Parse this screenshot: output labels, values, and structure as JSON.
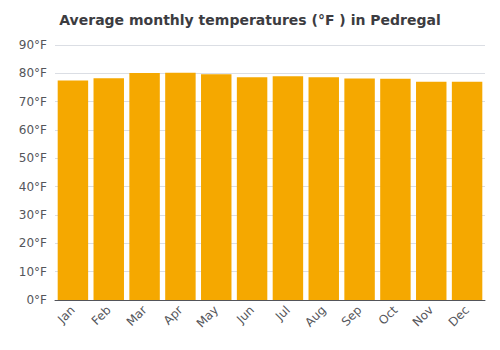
{
  "chart_data": {
    "type": "bar",
    "title": "Average monthly temperatures (°F ) in Pedregal",
    "categories": [
      "Jan",
      "Feb",
      "Mar",
      "Apr",
      "May",
      "Jun",
      "Jul",
      "Aug",
      "Sep",
      "Oct",
      "Nov",
      "Dec"
    ],
    "values": [
      77.5,
      78.3,
      80.1,
      80.2,
      79.7,
      78.6,
      79.0,
      78.6,
      78.2,
      78.1,
      77.0,
      77.0
    ],
    "color": "#F5A800",
    "ylim": [
      0,
      90
    ],
    "yticks": [
      {
        "value": 0,
        "label": "0°F"
      },
      {
        "value": 10,
        "label": "10°F"
      },
      {
        "value": 20,
        "label": "20°F"
      },
      {
        "value": 30,
        "label": "30°F"
      },
      {
        "value": 40,
        "label": "40°F"
      },
      {
        "value": 50,
        "label": "50°F"
      },
      {
        "value": 60,
        "label": "60°F"
      },
      {
        "value": 70,
        "label": "70°F"
      },
      {
        "value": 80,
        "label": "80°F"
      },
      {
        "value": 90,
        "label": "90°F"
      }
    ],
    "grid": true
  }
}
